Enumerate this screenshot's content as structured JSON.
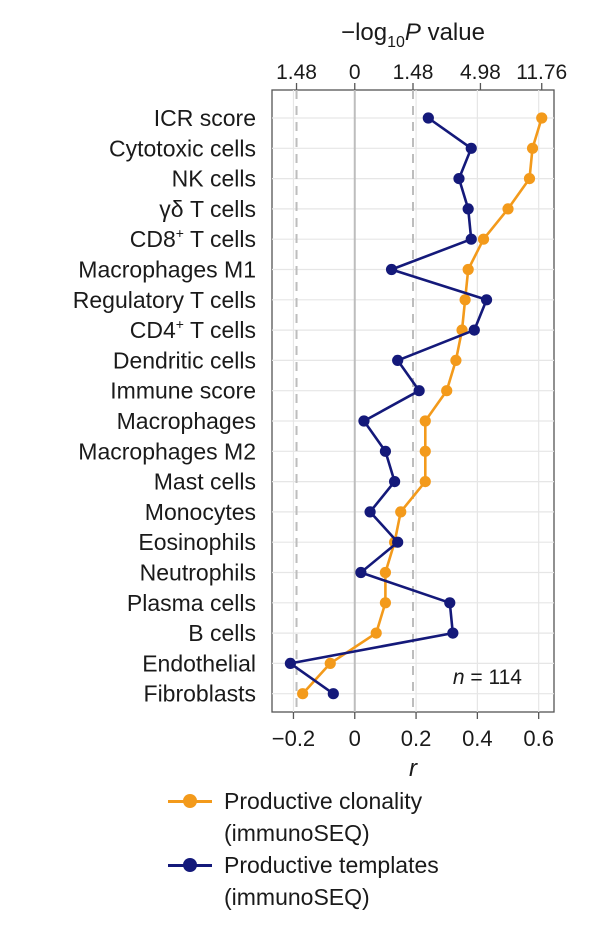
{
  "chart_data": {
    "type": "line",
    "orientation": "horizontal",
    "categories": [
      "ICR score",
      "Cytotoxic cells",
      "NK cells",
      "γδ T cells",
      "CD8+ T cells",
      "Macrophages M1",
      "Regulatory T cells",
      "CD4+ T cells",
      "Dendritic cells",
      "Immune score",
      "Macrophages",
      "Macrophages M2",
      "Mast cells",
      "Monocytes",
      "Eosinophils",
      "Neutrophils",
      "Plasma cells",
      "B cells",
      "Endothelial",
      "Fibroblasts"
    ],
    "category_labels": [
      {
        "base": "ICR score",
        "sup": ""
      },
      {
        "base": "Cytotoxic cells",
        "sup": ""
      },
      {
        "base": "NK cells",
        "sup": ""
      },
      {
        "base": "γδ T cells",
        "sup": ""
      },
      {
        "base": "CD8",
        "sup": "+",
        "rest": " T cells"
      },
      {
        "base": "Macrophages M1",
        "sup": ""
      },
      {
        "base": "Regulatory T cells",
        "sup": ""
      },
      {
        "base": "CD4",
        "sup": "+",
        "rest": " T cells"
      },
      {
        "base": "Dendritic cells",
        "sup": ""
      },
      {
        "base": "Immune score",
        "sup": ""
      },
      {
        "base": "Macrophages",
        "sup": ""
      },
      {
        "base": "Macrophages M2",
        "sup": ""
      },
      {
        "base": "Mast cells",
        "sup": ""
      },
      {
        "base": "Monocytes",
        "sup": ""
      },
      {
        "base": "Eosinophils",
        "sup": ""
      },
      {
        "base": "Neutrophils",
        "sup": ""
      },
      {
        "base": "Plasma cells",
        "sup": ""
      },
      {
        "base": "B cells",
        "sup": ""
      },
      {
        "base": "Endothelial",
        "sup": ""
      },
      {
        "base": "Fibroblasts",
        "sup": ""
      }
    ],
    "series": [
      {
        "name": "Productive clonality (immunoSEQ)",
        "name_lines": [
          "Productive clonality",
          "(immunoSEQ)"
        ],
        "color": "#f39a1b",
        "values": [
          0.61,
          0.58,
          0.57,
          0.5,
          0.42,
          0.37,
          0.36,
          0.35,
          0.33,
          0.3,
          0.23,
          0.23,
          0.23,
          0.15,
          0.13,
          0.1,
          0.1,
          0.07,
          -0.08,
          -0.17
        ]
      },
      {
        "name": "Productive templates (immunoSEQ)",
        "name_lines": [
          "Productive templates",
          "(immunoSEQ)"
        ],
        "color": "#14197a",
        "values": [
          0.24,
          0.38,
          0.34,
          0.37,
          0.38,
          0.12,
          0.43,
          0.39,
          0.14,
          0.21,
          0.03,
          0.1,
          0.13,
          0.05,
          0.14,
          0.02,
          0.31,
          0.32,
          -0.21,
          -0.07
        ]
      }
    ],
    "xlabel": "r",
    "xlim": [
      -0.27,
      0.65
    ],
    "xticks": [
      -0.2,
      0,
      0.2,
      0.4,
      0.6
    ],
    "xtick_labels": [
      "−0.2",
      "0",
      "0.2",
      "0.4",
      "0.6"
    ],
    "top_axis": {
      "label_parts": {
        "prefix": "−log",
        "sub": "10",
        "italic": "P",
        "suffix": " value"
      },
      "ticks": [
        -0.19,
        0,
        0.19,
        0.41,
        0.61
      ],
      "tick_labels": [
        "1.48",
        "0",
        "1.48",
        "4.98",
        "11.76"
      ]
    },
    "reference_lines": [
      {
        "x": -0.19,
        "style": "dashed",
        "color": "#bdbdbd"
      },
      {
        "x": 0,
        "style": "solid",
        "color": "#bdbdbd"
      },
      {
        "x": 0.19,
        "style": "dashed",
        "color": "#bdbdbd"
      }
    ],
    "annotation": {
      "italic": "n",
      "text": " = 114"
    },
    "grid": true,
    "legend_position": "bottom"
  }
}
